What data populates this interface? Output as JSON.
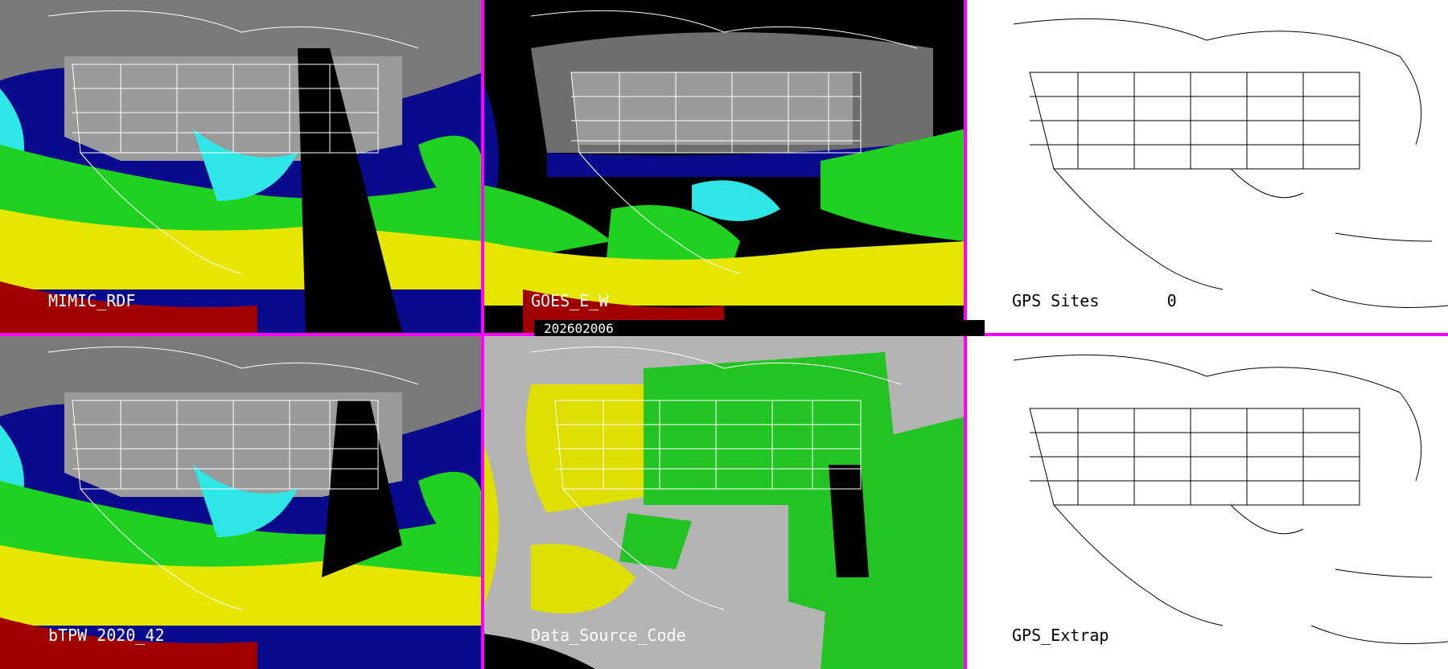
{
  "panels": [
    {
      "label": "MIMIC_RDF",
      "style": "tpw"
    },
    {
      "label": "GOES_E_W",
      "style": "goes"
    },
    {
      "label": "GPS Sites       0",
      "style": "outline"
    },
    {
      "label": "bTPW 2020_42",
      "style": "tpw"
    },
    {
      "label": "Data_Source_Code",
      "style": "source"
    },
    {
      "label": "GPS_Extrap",
      "style": "outline"
    }
  ],
  "timestamp": "202602006",
  "colors": {
    "divider": "#ff00ff",
    "ocean_dark_blue": "#0a0a8c",
    "blue": "#1f3fd0",
    "cyan": "#2ee6e6",
    "green": "#1fd21f",
    "yellow": "#e6e600",
    "red": "#a00000",
    "land_gray": "#8a8a8a",
    "source_gray": "#b4b4b4",
    "source_green": "#22c322",
    "source_yellow": "#dede00"
  }
}
